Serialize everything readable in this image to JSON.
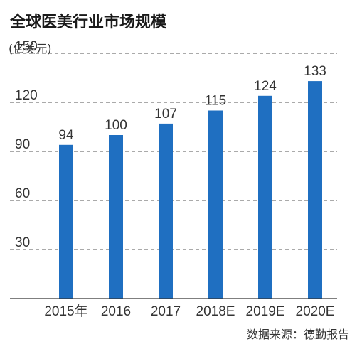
{
  "chart_data": {
    "type": "bar",
    "title": "全球医美行业市场规模",
    "unit_label": "(亿美元)",
    "source": "数据来源：德勤报告",
    "categories": [
      "2015年",
      "2016",
      "2017",
      "2018E",
      "2019E",
      "2020E"
    ],
    "values": [
      94,
      100,
      107,
      115,
      124,
      133
    ],
    "ylim": [
      0,
      150
    ],
    "yticks": [
      30,
      60,
      90,
      120,
      150
    ],
    "grid": true,
    "bar_color": "#1f6fc1",
    "grid_color": "#555555"
  }
}
